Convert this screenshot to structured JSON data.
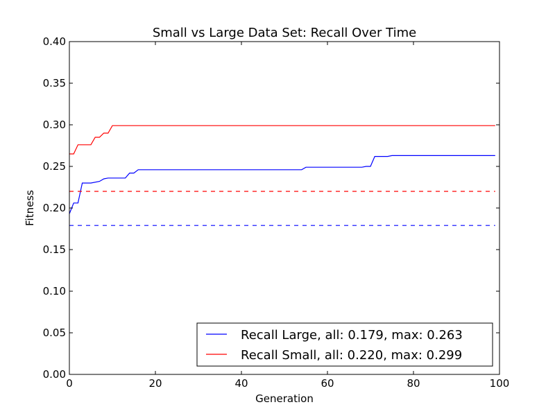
{
  "chart_data": {
    "type": "line",
    "title": "Small vs Large Data Set: Recall Over Time",
    "xlabel": "Generation",
    "ylabel": "Fitness",
    "xlim": [
      0,
      100
    ],
    "ylim": [
      0,
      0.4
    ],
    "xticks": [
      0,
      20,
      40,
      60,
      80,
      100
    ],
    "xtick_labels": [
      "0",
      "20",
      "40",
      "60",
      "80",
      "100"
    ],
    "yticks": [
      0,
      0.05,
      0.1,
      0.15,
      0.2,
      0.25,
      0.3,
      0.35,
      0.4
    ],
    "ytick_labels": [
      "0.00",
      "0.05",
      "0.10",
      "0.15",
      "0.20",
      "0.25",
      "0.30",
      "0.35",
      "0.40"
    ],
    "grid": false,
    "legend_position": "lower-right",
    "series": [
      {
        "name": "Recall Large, all: 0.179, max: 0.263",
        "color": "#0000ff",
        "style": "solid",
        "points": [
          [
            0,
            0.193
          ],
          [
            1,
            0.206
          ],
          [
            2,
            0.206
          ],
          [
            3,
            0.23
          ],
          [
            5,
            0.23
          ],
          [
            7,
            0.232
          ],
          [
            8,
            0.235
          ],
          [
            9,
            0.236
          ],
          [
            13,
            0.236
          ],
          [
            14,
            0.242
          ],
          [
            15,
            0.242
          ],
          [
            16,
            0.246
          ],
          [
            54,
            0.246
          ],
          [
            55,
            0.249
          ],
          [
            68,
            0.249
          ],
          [
            69,
            0.25
          ],
          [
            70,
            0.25
          ],
          [
            71,
            0.262
          ],
          [
            74,
            0.262
          ],
          [
            75,
            0.263
          ],
          [
            99,
            0.263
          ]
        ]
      },
      {
        "name": "Recall Small, all: 0.220, max: 0.299",
        "color": "#ff0000",
        "style": "solid",
        "points": [
          [
            0,
            0.265
          ],
          [
            1,
            0.265
          ],
          [
            2,
            0.276
          ],
          [
            5,
            0.276
          ],
          [
            6,
            0.285
          ],
          [
            7,
            0.285
          ],
          [
            8,
            0.29
          ],
          [
            9,
            0.29
          ],
          [
            10,
            0.299
          ],
          [
            99,
            0.299
          ]
        ]
      },
      {
        "name": "",
        "color": "#ff0000",
        "style": "dashed",
        "points": [
          [
            0,
            0.22
          ],
          [
            99,
            0.22
          ]
        ]
      },
      {
        "name": "",
        "color": "#0000ff",
        "style": "dashed",
        "points": [
          [
            0,
            0.179
          ],
          [
            99,
            0.179
          ]
        ]
      }
    ]
  }
}
